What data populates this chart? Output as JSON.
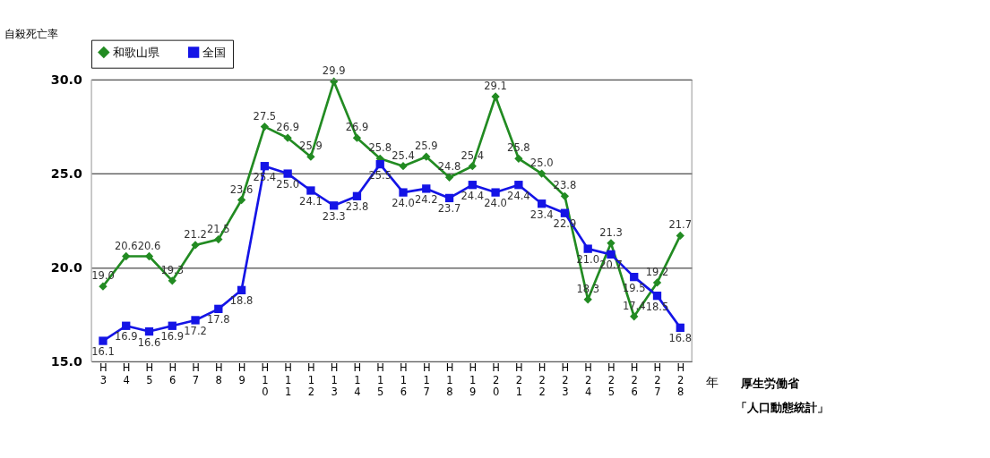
{
  "chart_data": {
    "type": "line",
    "ylabel": "自殺死亡率",
    "xlabel": "年",
    "categories": [
      "H3",
      "H4",
      "H5",
      "H6",
      "H7",
      "H8",
      "H9",
      "H10",
      "H11",
      "H12",
      "H13",
      "H14",
      "H15",
      "H16",
      "H17",
      "H18",
      "H19",
      "H20",
      "H21",
      "H22",
      "H23",
      "H24",
      "H25",
      "H26",
      "H27",
      "H28"
    ],
    "series": [
      {
        "name": "和歌山県",
        "color": "#228b22",
        "marker": "diamond",
        "values": [
          19.0,
          20.6,
          20.6,
          19.3,
          21.2,
          21.5,
          23.6,
          27.5,
          26.9,
          25.9,
          29.9,
          26.9,
          25.8,
          25.4,
          25.9,
          24.8,
          25.4,
          29.1,
          25.8,
          25.0,
          23.8,
          18.3,
          21.3,
          17.4,
          19.2,
          21.7
        ],
        "value_labels": [
          "19.0",
          "20.6",
          "20.6",
          "19.3",
          "21.2",
          "21.5",
          "23.6",
          "27.5",
          "26.9",
          "25.9",
          "29.9",
          "26.9",
          "25.8",
          "25.4",
          "25.9",
          "24.8",
          "25.4",
          "29.1",
          "25.8",
          "25.0",
          "23.8",
          "18.3",
          "21.3",
          "17.4",
          "19.2",
          "21.7"
        ]
      },
      {
        "name": "全国",
        "color": "#1414e6",
        "marker": "square",
        "values": [
          16.1,
          16.9,
          16.6,
          16.9,
          17.2,
          17.8,
          18.8,
          25.4,
          25.0,
          24.1,
          23.3,
          23.8,
          25.5,
          24.0,
          24.2,
          23.7,
          24.4,
          24.0,
          24.4,
          23.4,
          22.9,
          21.0,
          20.7,
          19.5,
          18.5,
          16.8
        ],
        "value_labels": [
          "16.1",
          "16.9",
          "16.6",
          "16.9",
          "17.2",
          "17.8",
          "18.8",
          "25.4",
          "25.0",
          "24.1",
          "23.3",
          "23.8",
          "25.5",
          "24.0",
          "24.2",
          "23.7",
          "24.4",
          "24.0",
          "24.4",
          "23.4",
          "22.9",
          "21.0",
          "20.7",
          "19.5",
          "18.5",
          "16.8"
        ]
      }
    ],
    "ylim": [
      15.0,
      30.0
    ],
    "yticks": [
      {
        "value": 15,
        "label": "15.0"
      },
      {
        "value": 20,
        "label": "20.0"
      },
      {
        "value": 25,
        "label": "25.0"
      },
      {
        "value": 30,
        "label": "30.0"
      }
    ],
    "grid": "y",
    "legend": "top",
    "annotations": [
      "厚生労働省",
      "「人口動態統計」"
    ]
  }
}
